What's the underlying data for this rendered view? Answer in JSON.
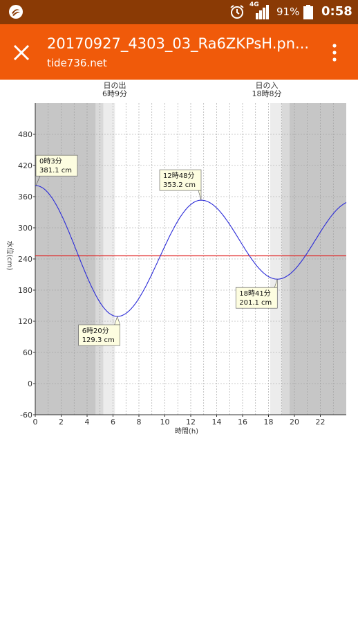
{
  "status_bar": {
    "network": "4G",
    "battery_percent": "91%",
    "time": "0:58",
    "icons": [
      "app-logo-icon",
      "alarm-icon",
      "signal-icon",
      "battery-icon"
    ]
  },
  "app_bar": {
    "title": "20170927_4303_03_Ra6ZKPsH.pn...",
    "subtitle": "tide736.net",
    "icons": [
      "close-icon",
      "more-vert-icon"
    ]
  },
  "chart_data": {
    "type": "line",
    "xlabel": "時間(h)",
    "ylabel": "水位(cm)",
    "xlim": [
      0,
      24
    ],
    "ylim": [
      -60,
      540
    ],
    "xticks": [
      0,
      2,
      4,
      6,
      8,
      10,
      12,
      14,
      16,
      18,
      20,
      22
    ],
    "yticks": [
      -60,
      0,
      60,
      120,
      180,
      240,
      300,
      360,
      420,
      480
    ],
    "reference_line": 246,
    "sunrise": {
      "label": "日の出",
      "time": "6時9分",
      "hour": 6.15
    },
    "sunset": {
      "label": "日の入",
      "time": "18時8分",
      "hour": 18.13
    },
    "annotations": [
      {
        "time": "0時3分",
        "value": "381.1 cm",
        "x": 0.05,
        "y": 381.1
      },
      {
        "time": "6時20分",
        "value": "129.3 cm",
        "x": 6.33,
        "y": 129.3
      },
      {
        "time": "12時48分",
        "value": "353.2 cm",
        "x": 12.8,
        "y": 353.2
      },
      {
        "time": "18時41分",
        "value": "201.1 cm",
        "x": 18.68,
        "y": 201.1
      }
    ],
    "series": [
      {
        "color": "#2a2ad8",
        "x": [
          0.05,
          6.33,
          12.8,
          18.68,
          24
        ],
        "y": [
          381.1,
          129.3,
          353.2,
          201.1,
          345
        ]
      }
    ],
    "colors": {
      "night": "#c6c6c6",
      "twilight_dark": "#d9d9d9",
      "twilight_light": "#ececec",
      "day": "#ffffff",
      "reference_line": "#e02020",
      "curve": "#2a2ad8",
      "label_bg": "#fdfde0"
    },
    "grid": true
  }
}
